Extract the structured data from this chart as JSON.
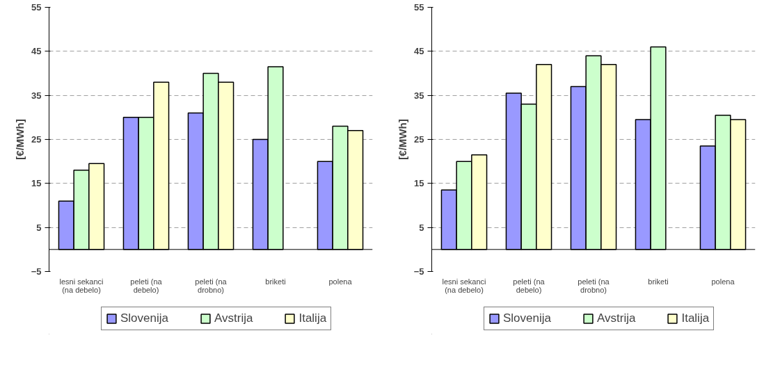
{
  "chart_data": [
    {
      "type": "bar",
      "ylabel": "[€/MWh]",
      "categories": [
        "lesni sekanci (na debelo)",
        "peleti (na debelo)",
        "peleti (na drobno)",
        "briketi",
        "polena"
      ],
      "series": [
        {
          "name": "Slovenija",
          "color": "#9999ff",
          "values": [
            11,
            30,
            31,
            25,
            20
          ]
        },
        {
          "name": "Avstrija",
          "color": "#ccffcc",
          "values": [
            18,
            30,
            40,
            41.5,
            28
          ]
        },
        {
          "name": "Italija",
          "color": "#ffffcc",
          "values": [
            19.5,
            38,
            38,
            null,
            27
          ]
        }
      ],
      "ylim": [
        -5,
        55
      ],
      "yticks": [
        -5,
        5,
        15,
        25,
        35,
        45,
        55
      ],
      "grid": "y",
      "legend": "bottom"
    },
    {
      "type": "bar",
      "ylabel": "[€/MWh]",
      "categories": [
        "lesni sekanci (na debelo)",
        "peleti (na debelo)",
        "peleti (na drobno)",
        "briketi",
        "polena"
      ],
      "series": [
        {
          "name": "Slovenija",
          "color": "#9999ff",
          "values": [
            13.5,
            35.5,
            37,
            29.5,
            23.5
          ]
        },
        {
          "name": "Avstrija",
          "color": "#ccffcc",
          "values": [
            20,
            33,
            44,
            46,
            30.5
          ]
        },
        {
          "name": "Italija",
          "color": "#ffffcc",
          "values": [
            21.5,
            42,
            42,
            null,
            29.5
          ]
        }
      ],
      "ylim": [
        -5,
        55
      ],
      "yticks": [
        -5,
        5,
        15,
        25,
        35,
        45,
        55
      ],
      "grid": "y",
      "legend": "bottom"
    }
  ]
}
